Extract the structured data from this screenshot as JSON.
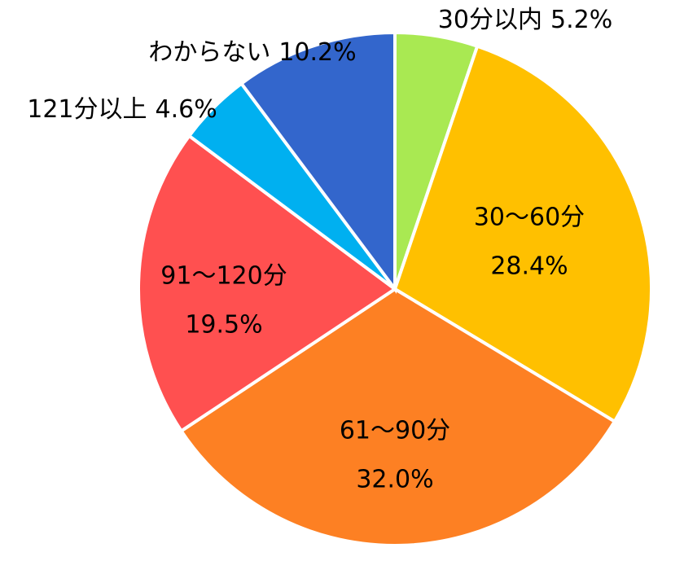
{
  "chart_data": {
    "type": "pie",
    "categories": [
      "30分以内",
      "30～60分",
      "61～90分",
      "91～120分",
      "121分以上",
      "わからない"
    ],
    "values": [
      5.2,
      28.4,
      32.0,
      19.5,
      4.6,
      10.2
    ],
    "value_labels": [
      "5.2%",
      "28.4%",
      "32.0%",
      "19.5%",
      "4.6%",
      "10.2%"
    ],
    "colors": [
      "#a9e952",
      "#ffc000",
      "#fd8023",
      "#ff5050",
      "#00b0f0",
      "#3366cc"
    ]
  }
}
